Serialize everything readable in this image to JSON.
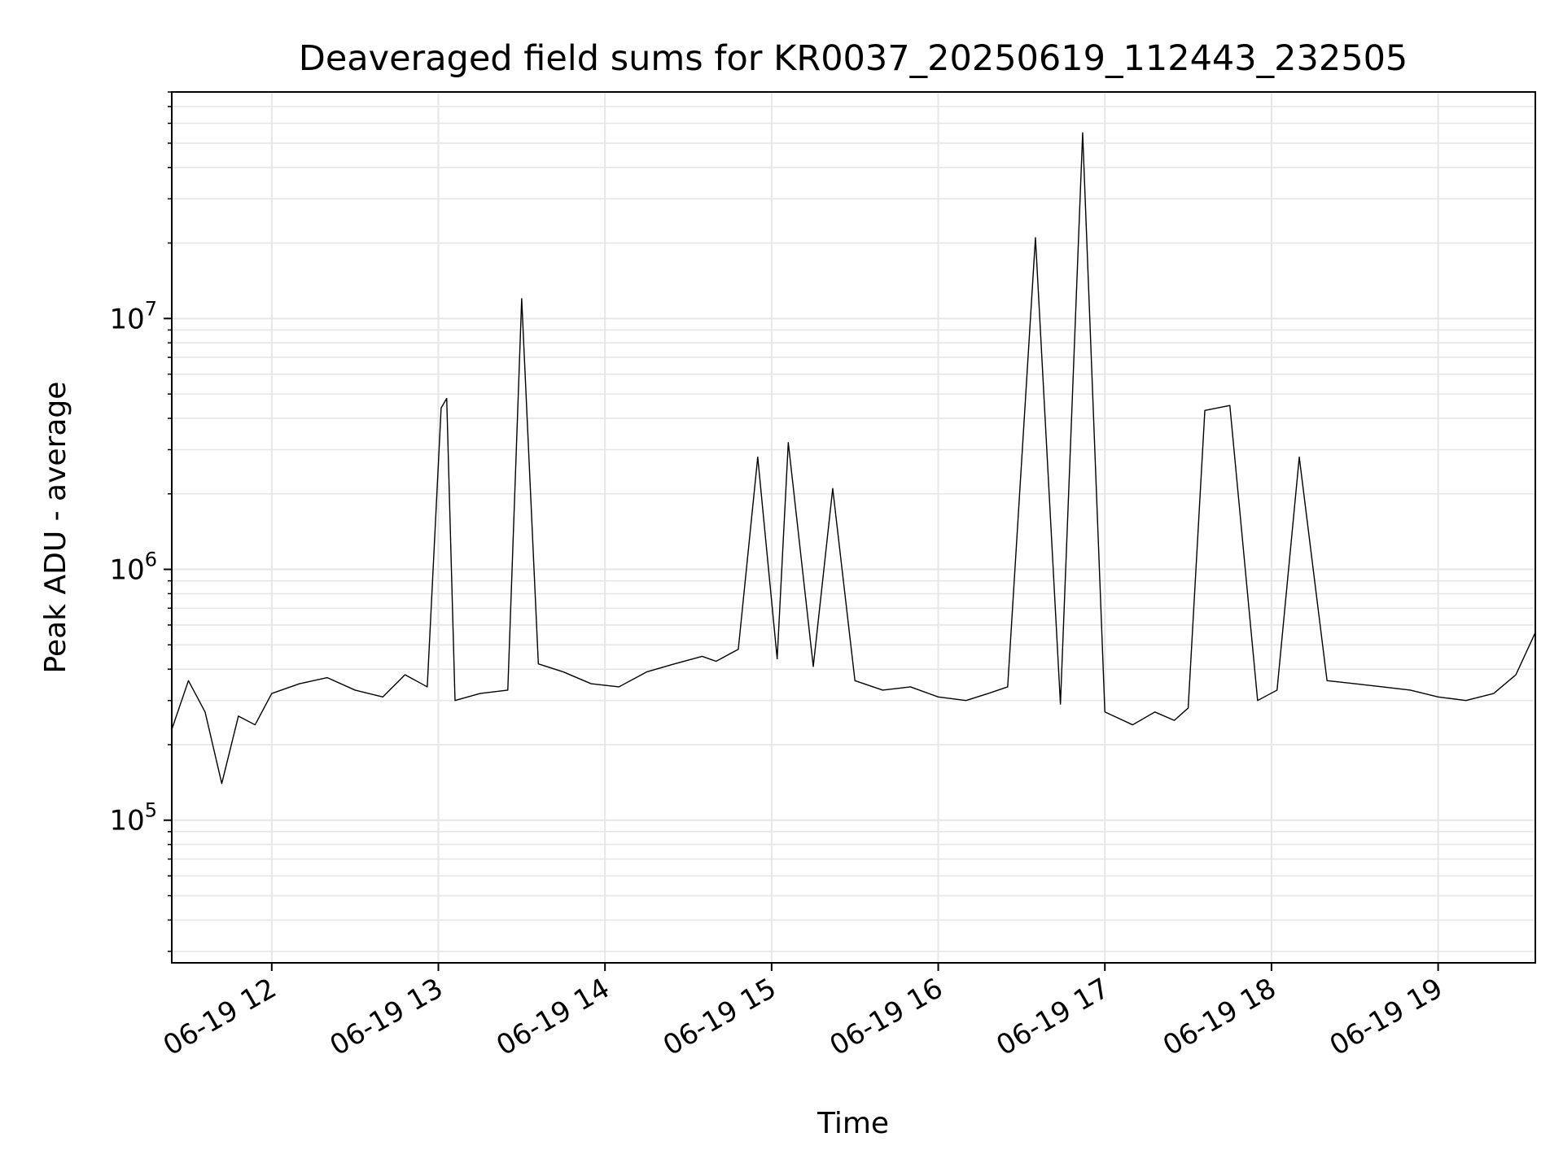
{
  "chart_data": {
    "type": "line",
    "title": "Deaveraged field sums for KR0037_20250619_112443_232505",
    "xlabel": "Time",
    "ylabel": "Peak ADU - average",
    "y_scale": "log",
    "ylim": [
      27000,
      80000000
    ],
    "xlim": [
      "2025-06-19 11:24",
      "2025-06-19 19:35"
    ],
    "grid": true,
    "line_color": "#000000",
    "grid_color": "#e6e6e6",
    "x_ticks": [
      {
        "value": "2025-06-19 12:00",
        "label": "06-19 12"
      },
      {
        "value": "2025-06-19 13:00",
        "label": "06-19 13"
      },
      {
        "value": "2025-06-19 14:00",
        "label": "06-19 14"
      },
      {
        "value": "2025-06-19 15:00",
        "label": "06-19 15"
      },
      {
        "value": "2025-06-19 16:00",
        "label": "06-19 16"
      },
      {
        "value": "2025-06-19 17:00",
        "label": "06-19 17"
      },
      {
        "value": "2025-06-19 18:00",
        "label": "06-19 18"
      },
      {
        "value": "2025-06-19 19:00",
        "label": "06-19 19"
      }
    ],
    "y_ticks": [
      {
        "value": 100000,
        "base": "10",
        "exp": "5"
      },
      {
        "value": 1000000,
        "base": "10",
        "exp": "6"
      },
      {
        "value": 10000000,
        "base": "10",
        "exp": "7"
      }
    ],
    "series": [
      {
        "x": [
          "2025-06-19 11:24",
          "2025-06-19 11:30",
          "2025-06-19 11:36",
          "2025-06-19 11:42",
          "2025-06-19 11:48",
          "2025-06-19 11:54",
          "2025-06-19 12:00",
          "2025-06-19 12:10",
          "2025-06-19 12:20",
          "2025-06-19 12:30",
          "2025-06-19 12:40",
          "2025-06-19 12:48",
          "2025-06-19 12:56",
          "2025-06-19 13:01",
          "2025-06-19 13:03",
          "2025-06-19 13:06",
          "2025-06-19 13:15",
          "2025-06-19 13:25",
          "2025-06-19 13:30",
          "2025-06-19 13:36",
          "2025-06-19 13:45",
          "2025-06-19 13:55",
          "2025-06-19 14:05",
          "2025-06-19 14:15",
          "2025-06-19 14:25",
          "2025-06-19 14:35",
          "2025-06-19 14:40",
          "2025-06-19 14:48",
          "2025-06-19 14:55",
          "2025-06-19 15:02",
          "2025-06-19 15:06",
          "2025-06-19 15:15",
          "2025-06-19 15:22",
          "2025-06-19 15:30",
          "2025-06-19 15:40",
          "2025-06-19 15:50",
          "2025-06-19 16:00",
          "2025-06-19 16:10",
          "2025-06-19 16:18",
          "2025-06-19 16:25",
          "2025-06-19 16:35",
          "2025-06-19 16:44",
          "2025-06-19 16:52",
          "2025-06-19 17:00",
          "2025-06-19 17:10",
          "2025-06-19 17:18",
          "2025-06-19 17:25",
          "2025-06-19 17:30",
          "2025-06-19 17:36",
          "2025-06-19 17:45",
          "2025-06-19 17:55",
          "2025-06-19 18:02",
          "2025-06-19 18:10",
          "2025-06-19 18:20",
          "2025-06-19 18:30",
          "2025-06-19 18:40",
          "2025-06-19 18:50",
          "2025-06-19 19:00",
          "2025-06-19 19:10",
          "2025-06-19 19:20",
          "2025-06-19 19:28",
          "2025-06-19 19:35"
        ],
        "y": [
          230000,
          360000,
          270000,
          140000,
          260000,
          240000,
          320000,
          350000,
          370000,
          330000,
          310000,
          380000,
          340000,
          4400000,
          4800000,
          300000,
          320000,
          330000,
          12000000,
          420000,
          390000,
          350000,
          340000,
          390000,
          420000,
          450000,
          430000,
          480000,
          2800000,
          440000,
          3200000,
          410000,
          2100000,
          360000,
          330000,
          340000,
          310000,
          300000,
          320000,
          340000,
          21000000,
          290000,
          55000000,
          270000,
          240000,
          270000,
          250000,
          280000,
          4300000,
          4500000,
          300000,
          330000,
          2800000,
          360000,
          350000,
          340000,
          330000,
          310000,
          300000,
          320000,
          380000,
          560000
        ]
      }
    ]
  }
}
